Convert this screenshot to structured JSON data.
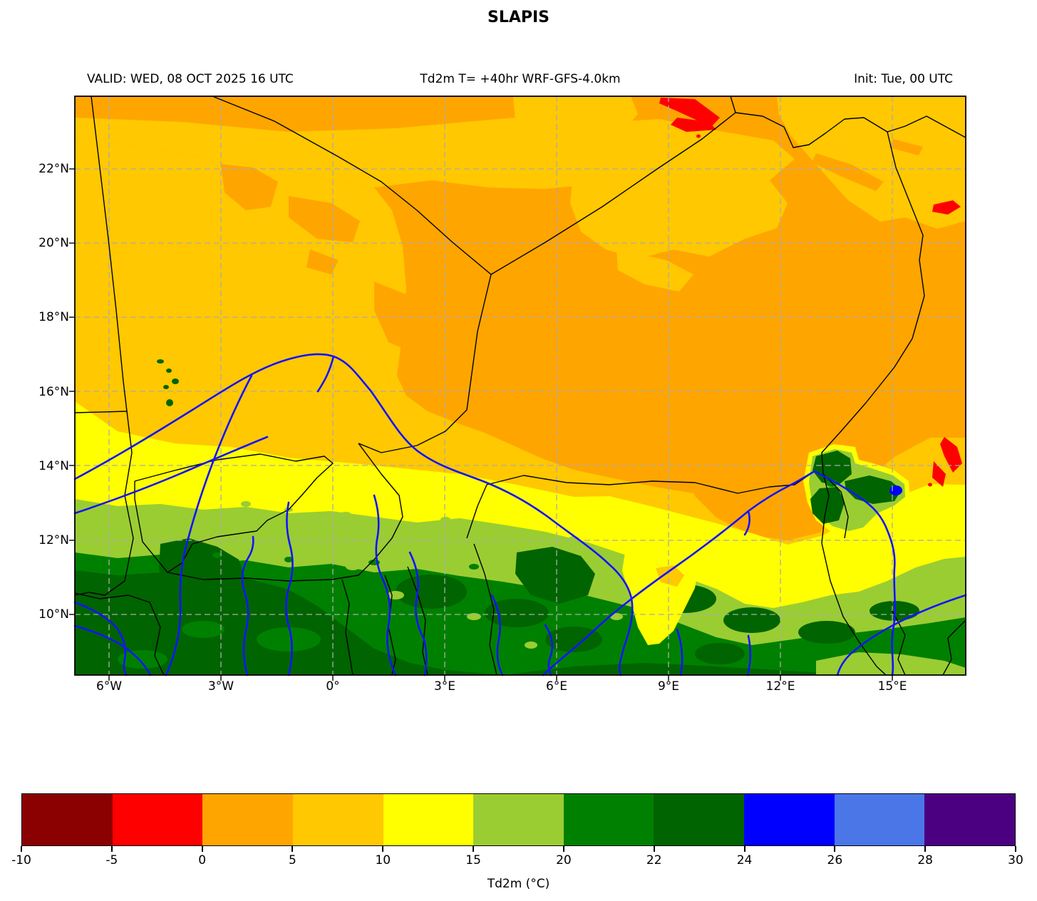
{
  "title": "SLAPIS",
  "header": {
    "valid": "VALID: WED, 08 OCT 2025 16 UTC",
    "product": "Td2m T= +40hr WRF-GFS-4.0km",
    "init": "Init: Tue, 00 UTC"
  },
  "axes": {
    "lat_ticks": [
      "22°N",
      "20°N",
      "18°N",
      "16°N",
      "14°N",
      "12°N",
      "10°N"
    ],
    "lon_ticks": [
      "6°W",
      "3°W",
      "0°",
      "3°E",
      "6°E",
      "9°E",
      "12°E",
      "15°E"
    ]
  },
  "colorbar": {
    "label": "Td2m (°C)",
    "tick_labels": [
      "-10",
      "-5",
      "0",
      "5",
      "10",
      "15",
      "20",
      "22",
      "24",
      "26",
      "28",
      "30"
    ],
    "segment_colors": [
      "#8B0000",
      "#FF0000",
      "#FFA500",
      "#FFC800",
      "#FFFF00",
      "#9ACD32",
      "#008000",
      "#006400",
      "#0000FF",
      "#4A76E8",
      "#4B0082"
    ]
  },
  "map": {
    "colors": {
      "river": "#1414FF",
      "border": "#000000",
      "grid": "#ABABAB"
    }
  }
}
